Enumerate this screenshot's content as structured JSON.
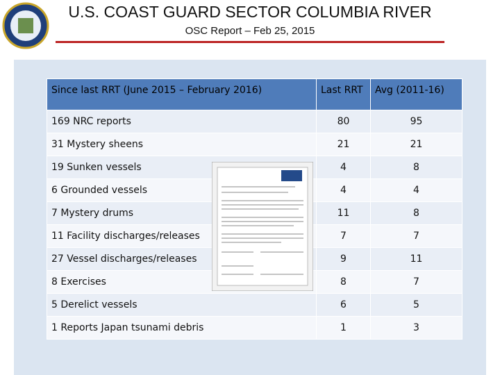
{
  "header": {
    "title": "U.S. COAST GUARD SECTOR COLUMBIA RIVER",
    "subtitle": "OSC Report – Feb 25, 2015"
  },
  "table": {
    "headers": [
      "Since last RRT (June 2015 – February 2016)",
      "Last RRT",
      "Avg (2011-16)"
    ],
    "rows": [
      [
        "169 NRC reports",
        80,
        95
      ],
      [
        "31 Mystery sheens",
        21,
        21
      ],
      [
        "19 Sunken vessels",
        4,
        8
      ],
      [
        "6 Grounded vessels",
        4,
        4
      ],
      [
        "7 Mystery drums",
        11,
        8
      ],
      [
        "11 Facility discharges/releases",
        7,
        7
      ],
      [
        "27 Vessel discharges/releases",
        9,
        11
      ],
      [
        "8 Exercises",
        8,
        7
      ],
      [
        "5 Derelict vessels",
        6,
        5
      ],
      [
        "1 Reports Japan tsunami debris",
        1,
        3
      ]
    ]
  }
}
